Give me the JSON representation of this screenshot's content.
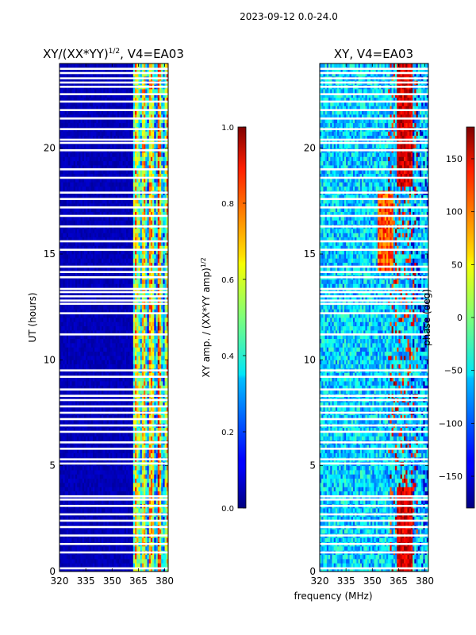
{
  "figure": {
    "suptitle": "2023-09-12 0.0-24.0",
    "shared_xlabel": "frequency (MHz)"
  },
  "chart_data": [
    {
      "type": "heatmap",
      "title": "XY/(XX*YY)",
      "title_sup": "1/2",
      "title_suffix": ", V4=EA03",
      "xlabel": "",
      "ylabel": "UT (hours)",
      "xlim": [
        320,
        382
      ],
      "ylim": [
        0,
        24
      ],
      "xticks": [
        320,
        335,
        350,
        365,
        380
      ],
      "yticks": [
        0,
        5,
        10,
        15,
        20
      ],
      "colorbar": {
        "label": "XY amp. / (XX*YY amp)",
        "label_sup": "1/2",
        "range": [
          0.0,
          1.0
        ],
        "ticks": [
          "0.0",
          "0.2",
          "0.4",
          "0.6",
          "0.8",
          "1.0"
        ],
        "colormap": "jet"
      },
      "description": "normalized XY amplitude; ~0.05 (dark blue) below 362 MHz, 0.3-0.9 in bands 362-380 MHz"
    },
    {
      "type": "heatmap",
      "title": "XY, V4=EA03",
      "xlabel": "frequency (MHz)",
      "ylabel": "",
      "xlim": [
        320,
        382
      ],
      "ylim": [
        0,
        24
      ],
      "xticks": [
        320,
        335,
        350,
        365,
        380
      ],
      "yticks": [
        0,
        5,
        10,
        15,
        20
      ],
      "colorbar": {
        "label": "phase (deg)",
        "range": [
          -180,
          180
        ],
        "ticks": [
          "−150",
          "−100",
          "−50",
          "0",
          "50",
          "100",
          "150"
        ],
        "tick_values": [
          -150,
          -100,
          -50,
          0,
          50,
          100,
          150
        ],
        "colormap": "jet"
      },
      "description": "XY phase in degrees; mostly -100 to 0 with red/dark-red streaks near 355-375 MHz"
    }
  ],
  "flagged_hours": [
    0.15,
    0.9,
    1.3,
    1.7,
    2.1,
    2.4,
    2.7,
    3.1,
    3.4,
    3.55,
    5.1,
    5.3,
    5.8,
    6.1,
    6.6,
    6.9,
    7.2,
    7.5,
    7.8,
    8.1,
    8.3,
    8.6,
    9.2,
    9.5,
    11.2,
    12.2,
    12.65,
    12.8,
    13.0,
    13.2,
    13.35,
    13.9,
    14.15,
    14.4,
    15.2,
    15.6,
    16.3,
    16.8,
    17.2,
    17.6,
    17.9,
    18.6,
    19.0,
    19.9,
    20.25,
    20.4,
    20.9,
    21.4,
    21.8,
    22.2,
    22.55,
    22.9,
    23.1,
    23.3,
    23.55,
    23.75
  ]
}
